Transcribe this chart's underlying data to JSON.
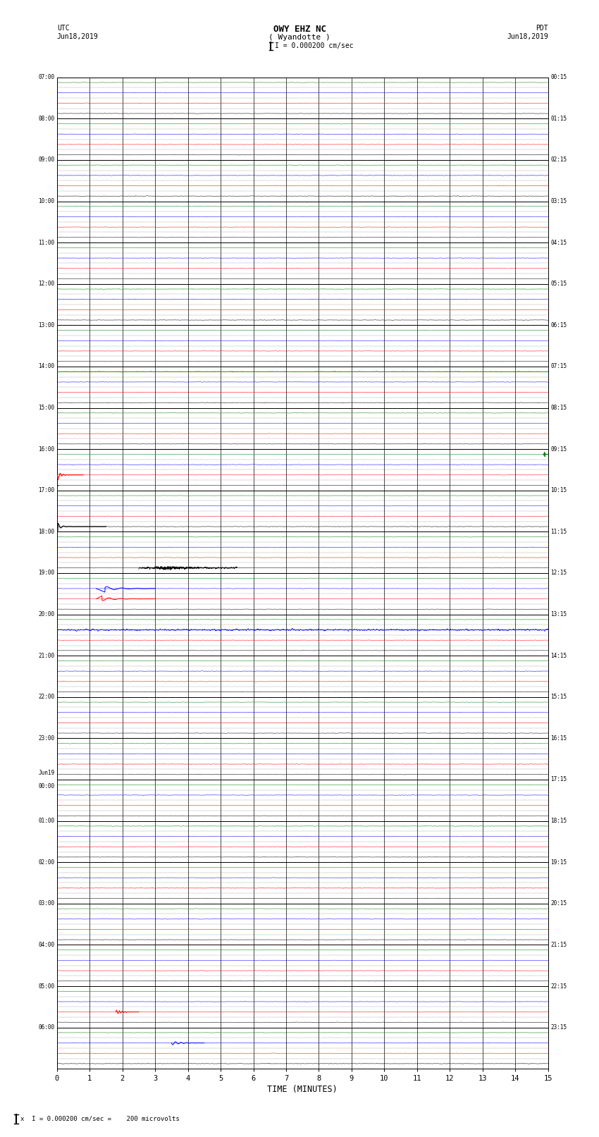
{
  "title_line1": "OWY EHZ NC",
  "title_line2": "( Wyandotte )",
  "scale_text": "I = 0.000200 cm/sec",
  "left_header1": "UTC",
  "left_header2": "Jun18,2019",
  "right_header1": "PDT",
  "right_header2": "Jun18,2019",
  "left_times": [
    "07:00",
    "08:00",
    "09:00",
    "10:00",
    "11:00",
    "12:00",
    "13:00",
    "14:00",
    "15:00",
    "16:00",
    "17:00",
    "18:00",
    "19:00",
    "20:00",
    "21:00",
    "22:00",
    "23:00",
    "Jun19\n00:00",
    "01:00",
    "02:00",
    "03:00",
    "04:00",
    "05:00",
    "06:00"
  ],
  "right_times": [
    "00:15",
    "01:15",
    "02:15",
    "03:15",
    "04:15",
    "05:15",
    "06:15",
    "07:15",
    "08:15",
    "09:15",
    "10:15",
    "11:15",
    "12:15",
    "13:15",
    "14:15",
    "15:15",
    "16:15",
    "17:15",
    "18:15",
    "19:15",
    "20:15",
    "21:15",
    "22:15",
    "23:15"
  ],
  "n_rows": 24,
  "sub_rows": 4,
  "x_min": 0,
  "x_max": 15,
  "xlabel": "TIME (MINUTES)",
  "footer_text": "x  I = 0.000200 cm/sec =    200 microvolts",
  "bg_color": "#ffffff",
  "grid_color_major": "#000000",
  "grid_color_minor": "#aaaaaa",
  "trace_colors": [
    "#000000",
    "#ff0000",
    "#0000ff",
    "#008000"
  ],
  "noise_scale": 0.008,
  "seed": 12345
}
